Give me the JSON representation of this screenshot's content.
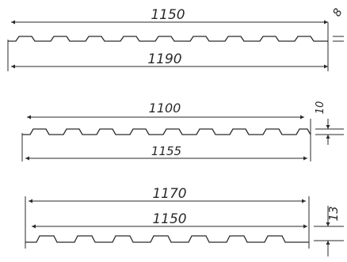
{
  "profiles": [
    {
      "id": "profile-1",
      "useful_width_label": "1150",
      "total_width_label": "1190",
      "height_label": "8"
    },
    {
      "id": "profile-2",
      "useful_width_label": "1100",
      "total_width_label": "1155",
      "height_label": "10"
    },
    {
      "id": "profile-3",
      "total_width_label": "1170",
      "useful_width_label": "1150",
      "height_label": "13"
    }
  ]
}
